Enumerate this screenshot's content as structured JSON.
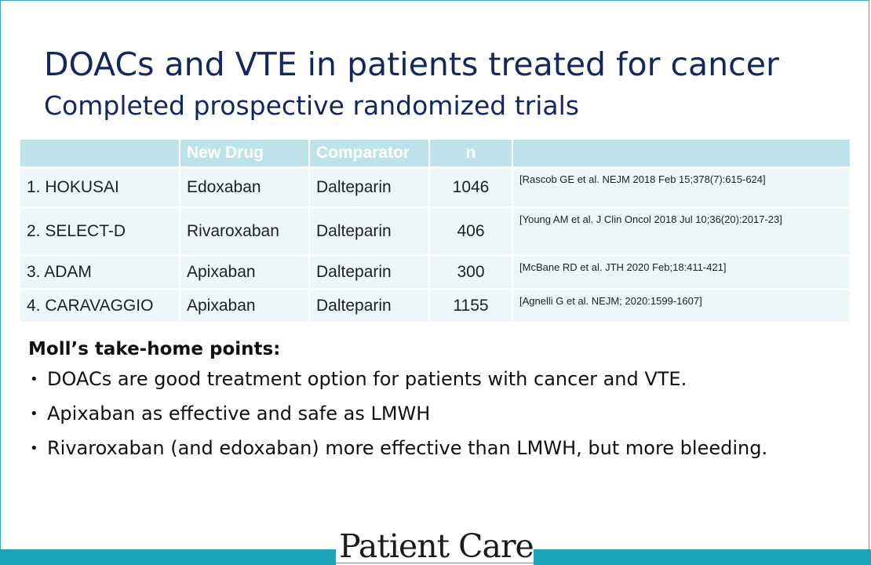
{
  "slide": {
    "title": "DOACs and VTE in patients treated for cancer",
    "subtitle": "Completed prospective randomized trials"
  },
  "table": {
    "headers": [
      "",
      "New Drug",
      "Comparator",
      "n",
      ""
    ],
    "rows": [
      {
        "trial": "1. HOKUSAI",
        "new_drug": "Edoxaban",
        "comparator": "Dalteparin",
        "n": "1046",
        "ref": "[Rascob GE et al. NEJM 2018 Feb 15;378(7):615-624]"
      },
      {
        "trial": "2. SELECT-D",
        "new_drug": "Rivaroxaban",
        "comparator": "Dalteparin",
        "n": "406",
        "ref": "[Young AM et al. J Clin Oncol 2018 Jul 10;36(20):2017-23]"
      },
      {
        "trial": "3. ADAM",
        "new_drug": "Apixaban",
        "comparator": "Dalteparin",
        "n": "300",
        "ref": "[McBane RD et al. JTH 2020 Feb;18:411-421]"
      },
      {
        "trial": "4. CARAVAGGIO",
        "new_drug": "Apixaban",
        "comparator": "Dalteparin",
        "n": "1155",
        "ref": "[Agnelli G et al. NEJM; 2020:1599-1607]"
      }
    ]
  },
  "takehome": {
    "title": "Moll’s take-home points:",
    "points": [
      "DOACs are good treatment option for patients with cancer and VTE.",
      "Apixaban as effective and safe as LMWH",
      "Rivaroxaban (and edoxaban) more effective than LMWH, but more bleeding."
    ]
  },
  "footer": {
    "logo_text": "Patient Care",
    "bar_color": "#1aa6b7"
  },
  "colors": {
    "title": "#12275e",
    "table_header_bg": "#bde3ea",
    "table_cell_bg": "#edf7f9"
  }
}
